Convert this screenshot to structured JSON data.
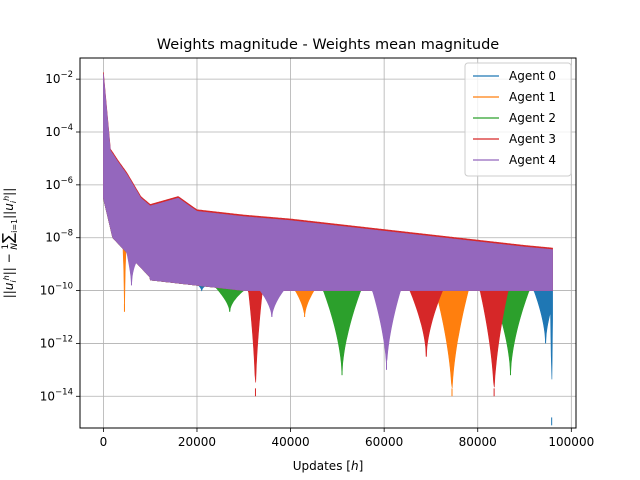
{
  "chart_data": {
    "type": "line",
    "title": "Weights magnitude - Weights mean magnitude",
    "xlabel": "Updates [h]",
    "ylabel": "||u_i^h|| − (1/N) Σ_{i=1} ||u_i^h||",
    "xlim": [
      -5000,
      101000
    ],
    "ylim_log10": [
      -15.2,
      -1.2
    ],
    "yscale": "log",
    "grid": true,
    "legend_position": "top-right",
    "x_ticks": [
      0,
      20000,
      40000,
      60000,
      80000,
      100000
    ],
    "x_tick_labels": [
      "0",
      "20000",
      "40000",
      "60000",
      "80000",
      "100000"
    ],
    "y_ticks_log10": [
      -14,
      -12,
      -10,
      -8,
      -6,
      -4,
      -2
    ],
    "y_tick_labels": [
      {
        "base": "10",
        "exp": "−14"
      },
      {
        "base": "10",
        "exp": "−12"
      },
      {
        "base": "10",
        "exp": "−10"
      },
      {
        "base": "10",
        "exp": "−8"
      },
      {
        "base": "10",
        "exp": "−6"
      },
      {
        "base": "10",
        "exp": "−4"
      },
      {
        "base": "10",
        "exp": "−2"
      }
    ],
    "envelope": {
      "x": [
        0,
        1500,
        3000,
        5000,
        8000,
        10000,
        14000,
        16000,
        20000,
        30000,
        40000,
        50000,
        60000,
        70000,
        80000,
        90000,
        96000
      ],
      "upper_log10": [
        -1.8,
        -4.7,
        -5.1,
        -5.6,
        -6.5,
        -6.8,
        -6.6,
        -6.5,
        -7.0,
        -7.2,
        -7.35,
        -7.55,
        -7.75,
        -7.95,
        -8.15,
        -8.35,
        -8.45
      ]
    },
    "series": [
      {
        "name": "Agent 0",
        "color": "#1f77b4",
        "dips": [
          {
            "x": 12000,
            "low": -9.5,
            "w": 500
          },
          {
            "x": 21000,
            "low": -10.0,
            "w": 700
          },
          {
            "x": 94500,
            "low": -12.0,
            "w": 2500
          },
          {
            "x": 95800,
            "low": -15.1,
            "w": 300
          }
        ]
      },
      {
        "name": "Agent 1",
        "color": "#ff7f0e",
        "dips": [
          {
            "x": 4500,
            "low": -10.8,
            "w": 300
          },
          {
            "x": 43000,
            "low": -11.0,
            "w": 2000
          },
          {
            "x": 74500,
            "low": -14.0,
            "w": 3500
          }
        ]
      },
      {
        "name": "Agent 2",
        "color": "#2ca02c",
        "dips": [
          {
            "x": 27000,
            "low": -10.8,
            "w": 3000
          },
          {
            "x": 51000,
            "low": -13.2,
            "w": 4000
          },
          {
            "x": 87000,
            "low": -13.2,
            "w": 4000
          }
        ]
      },
      {
        "name": "Agent 3",
        "color": "#d62728",
        "dips": [
          {
            "x": 32500,
            "low": -14.0,
            "w": 1500
          },
          {
            "x": 69000,
            "low": -12.5,
            "w": 3500
          },
          {
            "x": 83500,
            "low": -14.0,
            "w": 3000
          }
        ]
      },
      {
        "name": "Agent 4",
        "color": "#9467bd",
        "dips": [
          {
            "x": 6000,
            "low": -9.8,
            "w": 1000
          },
          {
            "x": 36000,
            "low": -11.0,
            "w": 2500
          },
          {
            "x": 60500,
            "low": -13.0,
            "w": 3000
          }
        ]
      }
    ]
  }
}
